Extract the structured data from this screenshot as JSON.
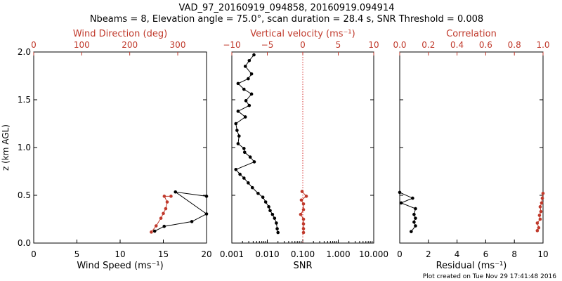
{
  "header": {
    "title": "VAD_97_20160919_094858, 20160919.094914",
    "subtitle": "Nbeams = 8, Elevation angle = 75.0°, scan duration = 28.4 s, SNR Threshold = 0.008",
    "footer": "Plot created on Tue Nov 29 17:41:48 2016"
  },
  "colors": {
    "primary": "#000000",
    "secondary": "#c0392b",
    "refline": "#d63030"
  },
  "chart_data": [
    {
      "type": "line",
      "shared_y": {
        "label": "z (km AGL)",
        "ylim": [
          0,
          2.0
        ],
        "ticks": [
          "0.0",
          "0.5",
          "1.0",
          "1.5",
          "2.0"
        ]
      },
      "bottom_axis": {
        "label": "Wind Speed (ms⁻¹)",
        "xlim": [
          0,
          20
        ],
        "ticks": [
          "0",
          "5",
          "10",
          "15",
          "20"
        ]
      },
      "top_axis": {
        "label": "Wind Direction (deg)",
        "xlim": [
          0,
          360
        ],
        "ticks": [
          "0",
          "100",
          "200",
          "300"
        ]
      },
      "series": [
        {
          "axis": "bottom",
          "color": "black",
          "x": [
            14.0,
            15.1,
            18.3,
            20.0,
            16.4,
            20.0
          ],
          "y": [
            0.125,
            0.175,
            0.225,
            0.305,
            0.535,
            0.49
          ]
        },
        {
          "axis": "top",
          "color": "red",
          "x": [
            245,
            255,
            265,
            270,
            275,
            278,
            272,
            286
          ],
          "y": [
            0.115,
            0.18,
            0.26,
            0.31,
            0.36,
            0.43,
            0.49,
            0.49
          ]
        }
      ]
    },
    {
      "type": "line",
      "bottom_axis": {
        "label": "SNR",
        "scale": "log",
        "xlim": [
          0.001,
          10
        ],
        "ticks": [
          "0.001",
          "0.010",
          "0.100",
          "1.000",
          "10.000"
        ]
      },
      "top_axis": {
        "label": "Vertical velocity (ms⁻¹)",
        "xlim": [
          -10,
          10
        ],
        "ticks": [
          "−10",
          "−5",
          "0",
          "5",
          "10"
        ],
        "reference_line_at": 0
      },
      "series": [
        {
          "axis": "bottom",
          "color": "black",
          "x": [
            0.02,
            0.019,
            0.018,
            0.016,
            0.014,
            0.012,
            0.011,
            0.009,
            0.0075,
            0.0055,
            0.0038,
            0.0029,
            0.0022,
            0.0017,
            0.0013,
            0.0043,
            0.0033,
            0.0023,
            0.0022,
            0.0015,
            0.0016,
            0.0014,
            0.0013,
            0.0024,
            0.0015,
            0.0031,
            0.0025,
            0.0036,
            0.0022,
            0.0015,
            0.0029,
            0.0036,
            0.0024,
            0.0031,
            0.0042
          ],
          "y": [
            0.11,
            0.15,
            0.21,
            0.26,
            0.3,
            0.34,
            0.38,
            0.43,
            0.48,
            0.52,
            0.58,
            0.63,
            0.68,
            0.72,
            0.77,
            0.85,
            0.9,
            0.95,
            0.99,
            1.04,
            1.12,
            1.18,
            1.25,
            1.32,
            1.38,
            1.44,
            1.49,
            1.56,
            1.61,
            1.67,
            1.72,
            1.77,
            1.85,
            1.91,
            1.97
          ]
        },
        {
          "axis": "top",
          "color": "red",
          "x": [
            0.1,
            0.1,
            0.1,
            0.1,
            -0.3,
            0.1,
            0.1,
            -0.2,
            0.5,
            -0.1
          ],
          "y": [
            0.11,
            0.15,
            0.2,
            0.25,
            0.3,
            0.35,
            0.41,
            0.45,
            0.49,
            0.54
          ]
        }
      ]
    },
    {
      "type": "line",
      "bottom_axis": {
        "label": "Residual (ms⁻¹)",
        "xlim": [
          0,
          10
        ],
        "ticks": [
          "0",
          "2",
          "4",
          "6",
          "8",
          "10"
        ]
      },
      "top_axis": {
        "label": "Correlation",
        "xlim": [
          0.0,
          1.0
        ],
        "ticks": [
          "0.0",
          "0.2",
          "0.4",
          "0.6",
          "0.8",
          "1.0"
        ]
      },
      "series": [
        {
          "axis": "bottom",
          "color": "black",
          "x": [
            0.8,
            1.1,
            1.0,
            1.1,
            1.0,
            1.1,
            0.1,
            0.9,
            0.0
          ],
          "y": [
            0.12,
            0.18,
            0.22,
            0.26,
            0.3,
            0.36,
            0.42,
            0.47,
            0.53
          ]
        },
        {
          "axis": "top",
          "color": "red",
          "x": [
            0.96,
            0.97,
            0.96,
            0.98,
            0.975,
            0.985,
            0.98,
            0.99,
            0.995,
            1.0
          ],
          "y": [
            0.13,
            0.16,
            0.21,
            0.25,
            0.29,
            0.33,
            0.38,
            0.42,
            0.47,
            0.52
          ]
        }
      ]
    }
  ]
}
